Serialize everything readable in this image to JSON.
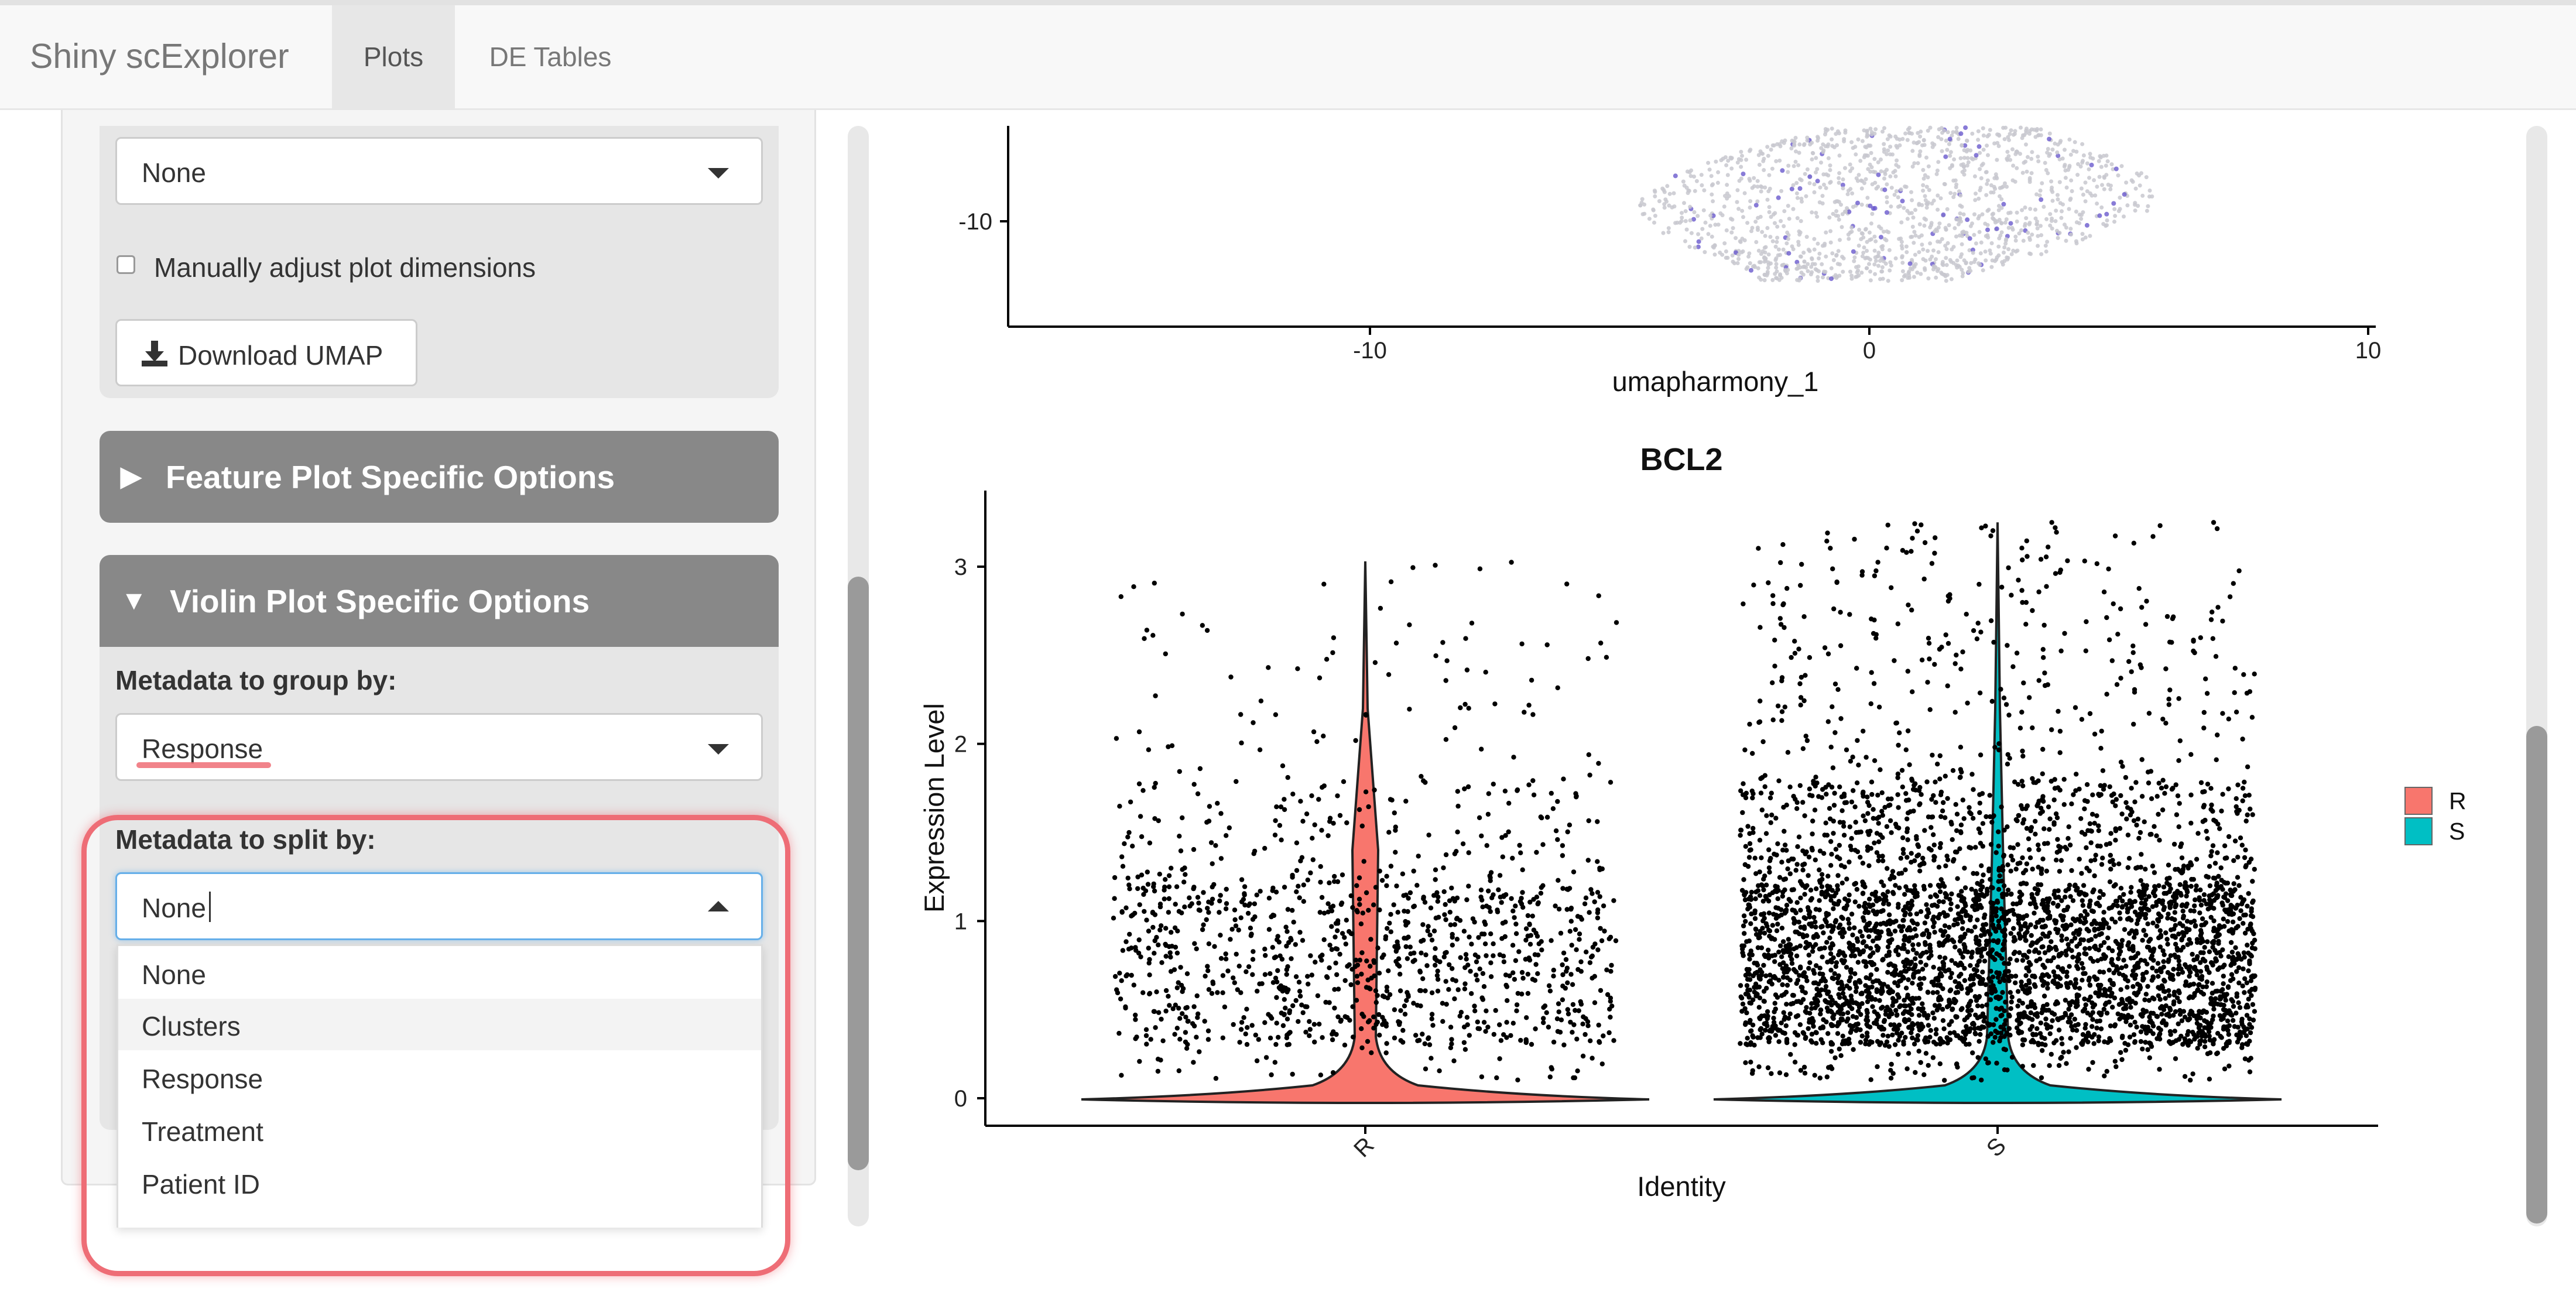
{
  "app": {
    "title": "Shiny scExplorer",
    "tabs": [
      {
        "label": "Plots",
        "active": true
      },
      {
        "label": "DE Tables",
        "active": false
      }
    ]
  },
  "sidebar": {
    "top_select_value": "None",
    "manual_dims_label": "Manually adjust plot dimensions",
    "manual_dims_checked": false,
    "download_button_label": "Download UMAP",
    "feature_section": {
      "arrow": "▶",
      "label": "Feature Plot Specific Options"
    },
    "violin_section": {
      "arrow": "▼",
      "label": "Violin Plot Specific Options",
      "group_by_label": "Metadata to group by:",
      "group_by_value": "Response",
      "split_by_label": "Metadata to split by:",
      "split_by_value": "None",
      "split_by_options": [
        "None",
        "Clusters",
        "Response",
        "Treatment",
        "Patient ID"
      ],
      "hovered_option": "Clusters"
    }
  },
  "umap_plot": {
    "xlabel": "umapharmony_1",
    "x_ticks": [
      "-10",
      "0",
      "10"
    ],
    "y_ticks": [
      "-10"
    ]
  },
  "chart_data": {
    "type": "violin",
    "title": "BCL2",
    "xlabel": "Identity",
    "ylabel": "Expression Level",
    "categories": [
      "R",
      "S"
    ],
    "ylim": [
      -0.12,
      3.35
    ],
    "y_ticks": [
      0,
      1,
      2,
      3
    ],
    "legend": {
      "placement": "right",
      "entries": [
        {
          "label": "R",
          "color": "#F8766D"
        },
        {
          "label": "S",
          "color": "#00BFC4"
        }
      ]
    },
    "series": [
      {
        "name": "R",
        "color": "#F8766D",
        "max_value": 3.03,
        "point_count_approx": 1200
      },
      {
        "name": "S",
        "color": "#00BFC4",
        "max_value": 3.25,
        "point_count_approx": 4000
      }
    ]
  }
}
